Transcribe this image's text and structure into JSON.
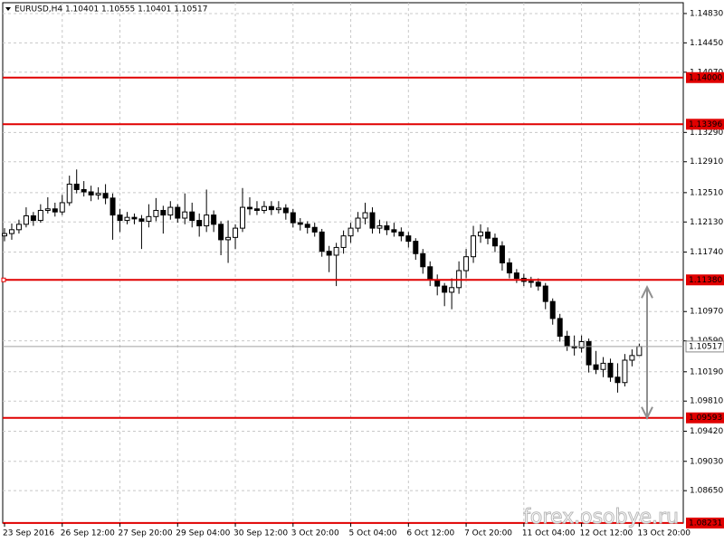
{
  "chart_data": {
    "type": "candlestick",
    "title": "EURUSD,H4 1.10401 1.10555 1.10401 1.10517",
    "watermark": "forex.osobye.ru",
    "categories": [
      "23 Sep 2016",
      null,
      null,
      null,
      null,
      null,
      null,
      null,
      "26 Sep 12:00",
      null,
      null,
      null,
      null,
      null,
      null,
      null,
      "27 Sep 20:00",
      null,
      null,
      null,
      null,
      null,
      null,
      null,
      "29 Sep 04:00",
      null,
      null,
      null,
      null,
      null,
      null,
      null,
      "30 Sep 12:00",
      null,
      null,
      null,
      null,
      null,
      null,
      null,
      "3 Oct 20:00",
      null,
      null,
      null,
      null,
      null,
      null,
      null,
      "5 Oct 04:00",
      null,
      null,
      null,
      null,
      null,
      null,
      null,
      "6 Oct 12:00",
      null,
      null,
      null,
      null,
      null,
      null,
      null,
      "7 Oct 20:00",
      null,
      null,
      null,
      null,
      null,
      null,
      null,
      "11 Oct 04:00",
      null,
      null,
      null,
      null,
      null,
      null,
      null,
      "12 Oct 12:00",
      null,
      null,
      null,
      null,
      null,
      null,
      null,
      "13 Oct 20:00"
    ],
    "candles": [
      [
        1.1195,
        1.1205,
        1.1188,
        1.1198
      ],
      [
        1.1198,
        1.1211,
        1.119,
        1.1203
      ],
      [
        1.1203,
        1.1216,
        1.1198,
        1.121
      ],
      [
        1.121,
        1.1232,
        1.1206,
        1.1221
      ],
      [
        1.1221,
        1.1226,
        1.1208,
        1.1215
      ],
      [
        1.1215,
        1.1236,
        1.1212,
        1.1228
      ],
      [
        1.1228,
        1.1245,
        1.1224,
        1.123
      ],
      [
        1.123,
        1.1238,
        1.122,
        1.1226
      ],
      [
        1.1226,
        1.1248,
        1.1222,
        1.1238
      ],
      [
        1.1238,
        1.1273,
        1.1234,
        1.1262
      ],
      [
        1.1262,
        1.1281,
        1.125,
        1.1255
      ],
      [
        1.1255,
        1.1266,
        1.1246,
        1.1252
      ],
      [
        1.1252,
        1.126,
        1.124,
        1.1248
      ],
      [
        1.1248,
        1.1258,
        1.1242,
        1.125
      ],
      [
        1.125,
        1.1262,
        1.1236,
        1.1244
      ],
      [
        1.1244,
        1.125,
        1.119,
        1.1222
      ],
      [
        1.1222,
        1.123,
        1.12,
        1.1215
      ],
      [
        1.1215,
        1.1226,
        1.121,
        1.1219
      ],
      [
        1.1219,
        1.1224,
        1.121,
        1.1217
      ],
      [
        1.1217,
        1.1222,
        1.1178,
        1.1214
      ],
      [
        1.1214,
        1.1236,
        1.1206,
        1.122
      ],
      [
        1.122,
        1.1244,
        1.1214,
        1.1228
      ],
      [
        1.1228,
        1.1234,
        1.1198,
        1.1222
      ],
      [
        1.1222,
        1.124,
        1.1216,
        1.1232
      ],
      [
        1.1232,
        1.1236,
        1.1212,
        1.1218
      ],
      [
        1.1218,
        1.125,
        1.121,
        1.1226
      ],
      [
        1.1226,
        1.1238,
        1.1206,
        1.1215
      ],
      [
        1.1215,
        1.1224,
        1.1194,
        1.1208
      ],
      [
        1.1208,
        1.1255,
        1.12,
        1.1222
      ],
      [
        1.1222,
        1.1228,
        1.12,
        1.121
      ],
      [
        1.121,
        1.1214,
        1.117,
        1.119
      ],
      [
        1.119,
        1.1215,
        1.116,
        1.1193
      ],
      [
        1.1193,
        1.121,
        1.1178,
        1.1205
      ],
      [
        1.1205,
        1.1257,
        1.12,
        1.1232
      ],
      [
        1.1232,
        1.1245,
        1.1222,
        1.123
      ],
      [
        1.123,
        1.124,
        1.1222,
        1.1228
      ],
      [
        1.1228,
        1.124,
        1.1224,
        1.1233
      ],
      [
        1.1233,
        1.124,
        1.1222,
        1.1229
      ],
      [
        1.1229,
        1.124,
        1.1224,
        1.1231
      ],
      [
        1.1231,
        1.1236,
        1.1216,
        1.1225
      ],
      [
        1.1225,
        1.123,
        1.1206,
        1.1212
      ],
      [
        1.1212,
        1.1218,
        1.1202,
        1.121
      ],
      [
        1.121,
        1.1214,
        1.1198,
        1.1206
      ],
      [
        1.1206,
        1.1212,
        1.1194,
        1.12
      ],
      [
        1.12,
        1.1204,
        1.1168,
        1.1175
      ],
      [
        1.1175,
        1.1182,
        1.1148,
        1.117
      ],
      [
        1.117,
        1.1186,
        1.113,
        1.118
      ],
      [
        1.118,
        1.1202,
        1.1172,
        1.1195
      ],
      [
        1.1195,
        1.1212,
        1.1186,
        1.1205
      ],
      [
        1.1205,
        1.1226,
        1.12,
        1.1218
      ],
      [
        1.1218,
        1.1238,
        1.121,
        1.1225
      ],
      [
        1.1225,
        1.1232,
        1.1198,
        1.1205
      ],
      [
        1.1205,
        1.1216,
        1.1198,
        1.1208
      ],
      [
        1.1208,
        1.1214,
        1.1196,
        1.1203
      ],
      [
        1.1203,
        1.1212,
        1.1194,
        1.12
      ],
      [
        1.12,
        1.1206,
        1.1188,
        1.1195
      ],
      [
        1.1195,
        1.12,
        1.118,
        1.1188
      ],
      [
        1.1188,
        1.1192,
        1.1164,
        1.1172
      ],
      [
        1.1172,
        1.1178,
        1.1146,
        1.1155
      ],
      [
        1.1155,
        1.1162,
        1.113,
        1.1138
      ],
      [
        1.1138,
        1.1145,
        1.1118,
        1.113
      ],
      [
        1.113,
        1.1134,
        1.1104,
        1.1122
      ],
      [
        1.1122,
        1.114,
        1.11,
        1.1128
      ],
      [
        1.1128,
        1.1162,
        1.112,
        1.115
      ],
      [
        1.115,
        1.1178,
        1.114,
        1.1168
      ],
      [
        1.1168,
        1.1208,
        1.116,
        1.1195
      ],
      [
        1.1195,
        1.121,
        1.1186,
        1.12
      ],
      [
        1.12,
        1.1206,
        1.1184,
        1.1192
      ],
      [
        1.1192,
        1.1198,
        1.1174,
        1.1182
      ],
      [
        1.1182,
        1.1188,
        1.115,
        1.116
      ],
      [
        1.116,
        1.1166,
        1.114,
        1.1147
      ],
      [
        1.1147,
        1.1152,
        1.1134,
        1.114
      ],
      [
        1.114,
        1.1146,
        1.113,
        1.1136
      ],
      [
        1.1136,
        1.1142,
        1.1128,
        1.1135
      ],
      [
        1.1135,
        1.114,
        1.1124,
        1.113
      ],
      [
        1.113,
        1.1134,
        1.11,
        1.111
      ],
      [
        1.111,
        1.1114,
        1.108,
        1.1088
      ],
      [
        1.1088,
        1.1094,
        1.1058,
        1.1065
      ],
      [
        1.1065,
        1.1072,
        1.1046,
        1.1052
      ],
      [
        1.1052,
        1.1066,
        1.104,
        1.105
      ],
      [
        1.105,
        1.1066,
        1.1044,
        1.1058
      ],
      [
        1.1058,
        1.1062,
        1.1018,
        1.1028
      ],
      [
        1.1028,
        1.1046,
        1.1016,
        1.1022
      ],
      [
        1.1022,
        1.1038,
        1.1012,
        1.103
      ],
      [
        1.103,
        1.1036,
        1.1006,
        1.1012
      ],
      [
        1.1012,
        1.103,
        1.0992,
        1.1005
      ],
      [
        1.1005,
        1.1042,
        1.1,
        1.1034
      ],
      [
        1.1034,
        1.1048,
        1.1026,
        1.104
      ],
      [
        1.10401,
        1.10555,
        1.10401,
        1.10517
      ]
    ],
    "up_color": "#ffffff",
    "down_color": "#000000",
    "level_color": "#e00000",
    "ylim": [
      1.0823,
      1.1497
    ],
    "yticks": [
      {
        "value": 1.1483,
        "label": "1.14830"
      },
      {
        "value": 1.1445,
        "label": "1.14450"
      },
      {
        "value": 1.1407,
        "label": "1.14070"
      },
      {
        "value": 1.1329,
        "label": "1.13290"
      },
      {
        "value": 1.1291,
        "label": "1.12910"
      },
      {
        "value": 1.1251,
        "label": "1.12510"
      },
      {
        "value": 1.1213,
        "label": "1.12130"
      },
      {
        "value": 1.1174,
        "label": "1.11740"
      },
      {
        "value": 1.1097,
        "label": "1.10970"
      },
      {
        "value": 1.1059,
        "label": "1.10590"
      },
      {
        "value": 1.1019,
        "label": "1.10190"
      },
      {
        "value": 1.0981,
        "label": "1.09810"
      },
      {
        "value": 1.0942,
        "label": "1.09420"
      },
      {
        "value": 1.0903,
        "label": "1.09030"
      },
      {
        "value": 1.0865,
        "label": "1.08650"
      }
    ],
    "grid": true,
    "levels": [
      {
        "value": 1.14,
        "label": "1.14000"
      },
      {
        "value": 1.13396,
        "label": "1.13396"
      },
      {
        "value": 1.1138,
        "label": "1.11380"
      },
      {
        "value": 1.09593,
        "label": "1.09593"
      },
      {
        "value": 1.08231,
        "label": "1.08231"
      }
    ],
    "current_price": {
      "value": 1.10517,
      "label": "1.10517"
    }
  }
}
